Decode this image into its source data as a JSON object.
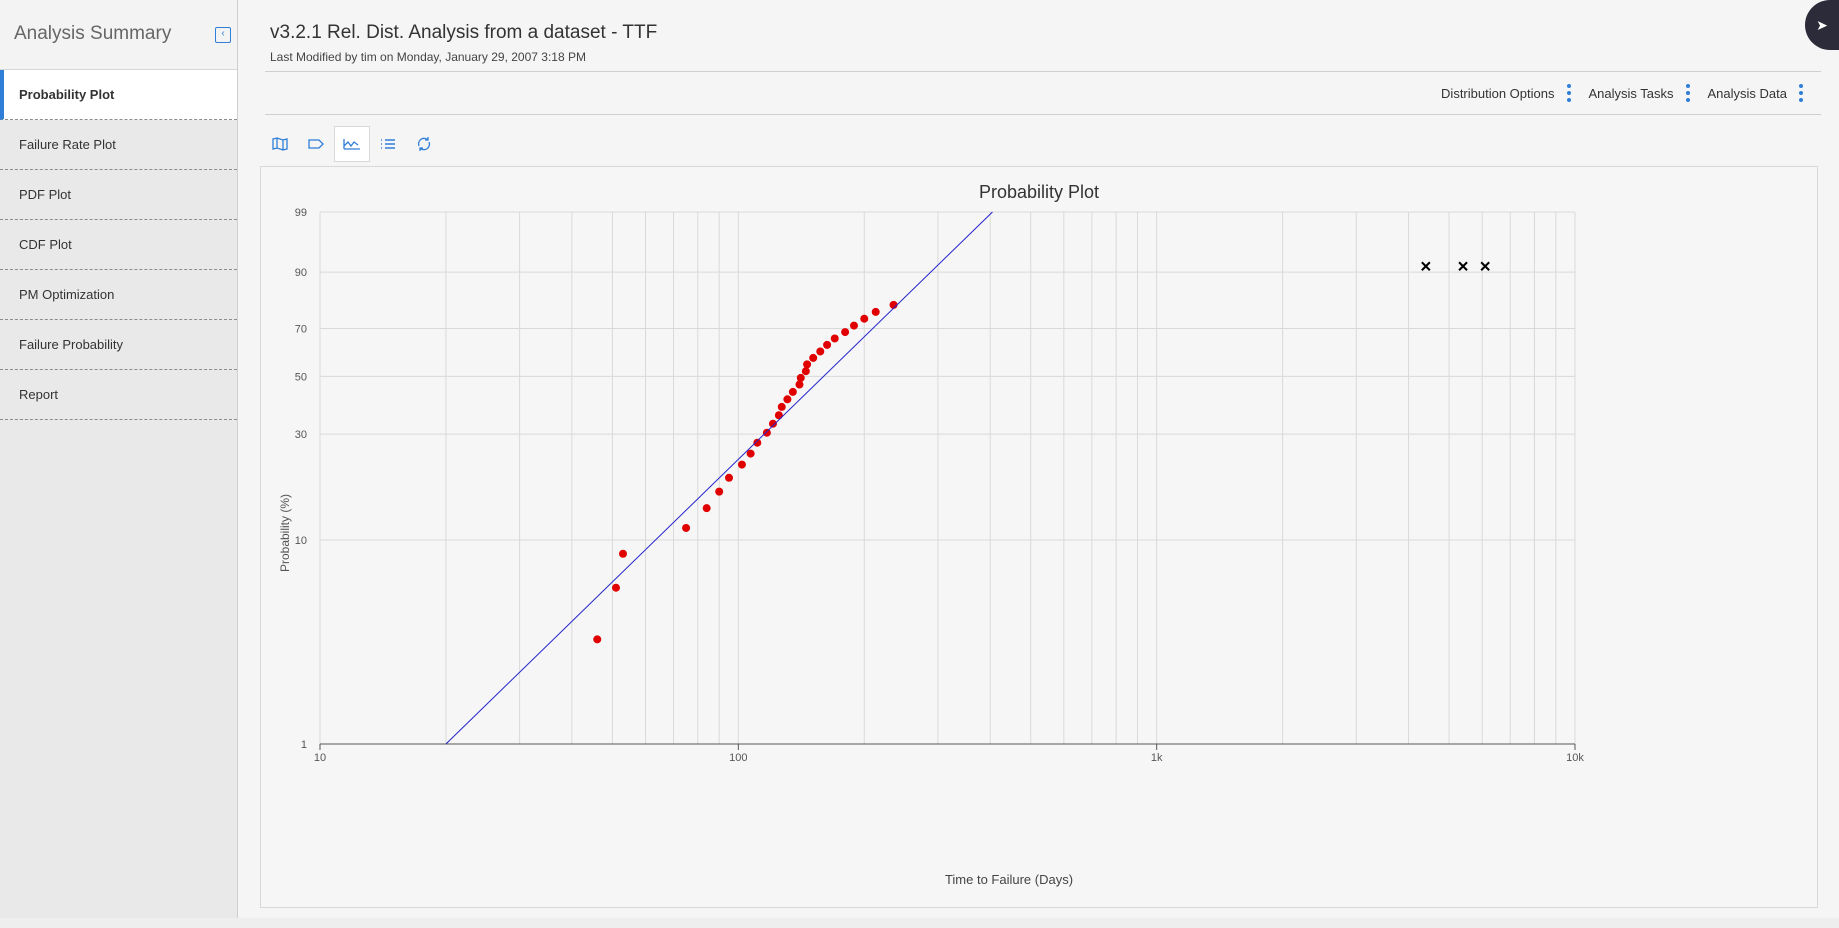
{
  "sidebar": {
    "title": "Analysis Summary",
    "items": [
      {
        "label": "Probability Plot",
        "active": true
      },
      {
        "label": "Failure Rate Plot"
      },
      {
        "label": "PDF Plot"
      },
      {
        "label": "CDF Plot"
      },
      {
        "label": "PM Optimization"
      },
      {
        "label": "Failure Probability"
      },
      {
        "label": "Report"
      }
    ]
  },
  "header": {
    "title": "v3.2.1 Rel. Dist. Analysis from a dataset - TTF",
    "subtitle": "Last Modified by tim on Monday, January 29, 2007 3:18 PM"
  },
  "toolbar": {
    "distribution_options": "Distribution Options",
    "analysis_tasks": "Analysis Tasks",
    "analysis_data": "Analysis Data"
  },
  "plot_tools": [
    "map-icon",
    "tag-icon",
    "line-chart-icon",
    "list-icon",
    "refresh-icon"
  ],
  "colors": {
    "accent": "#2f7ed8",
    "points": "#e00000",
    "fit_line": "#2222cc"
  },
  "chart_data": {
    "type": "scatter",
    "title": "Probability Plot",
    "xlabel": "Time to Failure (Days)",
    "ylabel": "Probability (%)",
    "x_scale": "log",
    "y_scale": "weibull-probability",
    "xlim": [
      10,
      10000
    ],
    "ylim": [
      1,
      99
    ],
    "x_ticks": [
      {
        "value": 10,
        "label": "10"
      },
      {
        "value": 100,
        "label": "100"
      },
      {
        "value": 1000,
        "label": "1k"
      },
      {
        "value": 10000,
        "label": "10k"
      }
    ],
    "y_ticks": [
      1,
      10,
      30,
      50,
      70,
      90,
      99
    ],
    "grid": true,
    "series": [
      {
        "marker": "circle",
        "color": "#e00000",
        "x": [
          46,
          51,
          53,
          75,
          84,
          90,
          95,
          102,
          107,
          111,
          117,
          121,
          125,
          127,
          131,
          135,
          140,
          141,
          145,
          146,
          151,
          157,
          163,
          170,
          180,
          189,
          200,
          213,
          235
        ],
        "y": [
          3.3,
          5.9,
          8.6,
          11.4,
          14.1,
          16.8,
          19.4,
          22.2,
          24.8,
          27.6,
          30.4,
          33.1,
          35.8,
          38.6,
          41.3,
          44.0,
          46.8,
          49.4,
          52.1,
          54.9,
          57.6,
          60.3,
          63.1,
          65.8,
          68.5,
          71.2,
          74.0,
          76.7,
          79.4
        ]
      },
      {
        "marker": "x",
        "color": "#000000",
        "x": [
          4400,
          5400,
          6100
        ],
        "y": [
          91.5,
          91.5,
          91.5
        ]
      },
      {
        "marker": "line",
        "color": "#2222cc",
        "x": [
          20,
          405
        ],
        "y": [
          1,
          99
        ]
      }
    ]
  }
}
